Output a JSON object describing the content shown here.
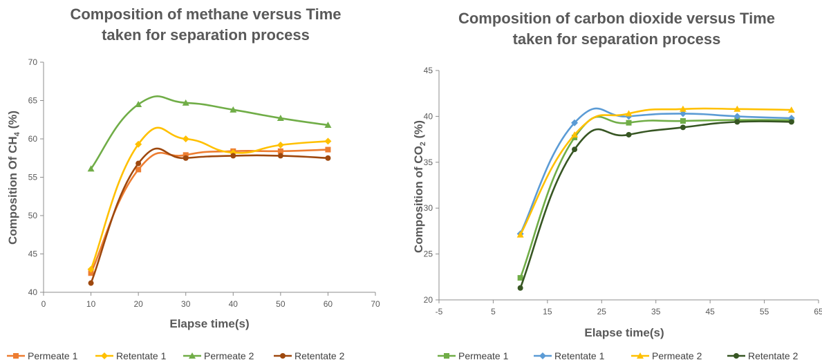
{
  "chart_data": [
    {
      "type": "line",
      "title": "Composition of methane versus Time taken for separation process",
      "title_lines": [
        "Composition of methane versus Time",
        "taken for separation process"
      ],
      "xlabel": "Elapse time(s)",
      "ylabel_parts": {
        "before": "Composition Of CH",
        "sub": "4",
        "after": " (%)"
      },
      "xlim": [
        0,
        70
      ],
      "ylim": [
        40,
        70
      ],
      "xticks": [
        "0",
        "10",
        "20",
        "30",
        "40",
        "50",
        "60",
        "70"
      ],
      "yticks": [
        "40",
        "45",
        "50",
        "55",
        "60",
        "65",
        "70"
      ],
      "grid": false,
      "legend_position": "bottom",
      "series": [
        {
          "name": "Permeate 1",
          "color": "#ED7D31",
          "marker": "square",
          "x": [
            10,
            20,
            30,
            40,
            50,
            60
          ],
          "y": [
            42.5,
            56.0,
            57.9,
            58.4,
            58.4,
            58.6
          ]
        },
        {
          "name": "Retentate 1",
          "color": "#FFC000",
          "marker": "diamond",
          "x": [
            10,
            20,
            30,
            40,
            50,
            60
          ],
          "y": [
            43.0,
            59.3,
            60.0,
            58.2,
            59.2,
            59.7
          ]
        },
        {
          "name": "Permeate 2",
          "color": "#70AD47",
          "marker": "triangle",
          "x": [
            10,
            20,
            30,
            40,
            50,
            60
          ],
          "y": [
            56.1,
            64.5,
            64.7,
            63.8,
            62.7,
            61.8
          ]
        },
        {
          "name": "Retentate 2",
          "color": "#9E480E",
          "marker": "circle",
          "x": [
            10,
            20,
            30,
            40,
            50,
            60
          ],
          "y": [
            41.2,
            56.8,
            57.5,
            57.8,
            57.8,
            57.5
          ]
        }
      ]
    },
    {
      "type": "line",
      "title": "Composition of carbon dioxide versus Time taken for separation process",
      "title_lines": [
        "Composition of carbon dioxide versus Time",
        "taken for separation process"
      ],
      "xlabel": "Elapse time(s)",
      "ylabel_parts": {
        "before": "Composition of CO",
        "sub": "2",
        "after": " (%)"
      },
      "xlim": [
        -5,
        65
      ],
      "ylim": [
        20,
        45
      ],
      "xticks": [
        "-5",
        "5",
        "15",
        "25",
        "35",
        "45",
        "55",
        "65"
      ],
      "yticks": [
        "20",
        "25",
        "30",
        "35",
        "40",
        "45"
      ],
      "grid": false,
      "legend_position": "bottom",
      "series": [
        {
          "name": "Permeate 1",
          "color": "#70AD47",
          "marker": "square",
          "x": [
            10,
            20,
            30,
            40,
            50,
            60
          ],
          "y": [
            22.4,
            37.7,
            39.3,
            39.5,
            39.6,
            39.6
          ]
        },
        {
          "name": "Retentate 1",
          "color": "#5B9BD5",
          "marker": "diamond",
          "x": [
            10,
            20,
            30,
            40,
            50,
            60
          ],
          "y": [
            27.2,
            39.3,
            40.0,
            40.3,
            40.0,
            39.8
          ]
        },
        {
          "name": "Permeate 2",
          "color": "#FFC000",
          "marker": "triangle",
          "x": [
            10,
            20,
            30,
            40,
            50,
            60
          ],
          "y": [
            27.1,
            38.0,
            40.3,
            40.8,
            40.8,
            40.7
          ]
        },
        {
          "name": "Retentate 2",
          "color": "#375623",
          "marker": "circle",
          "x": [
            10,
            20,
            30,
            40,
            50,
            60
          ],
          "y": [
            21.3,
            36.4,
            38.0,
            38.8,
            39.4,
            39.4
          ]
        }
      ]
    }
  ]
}
